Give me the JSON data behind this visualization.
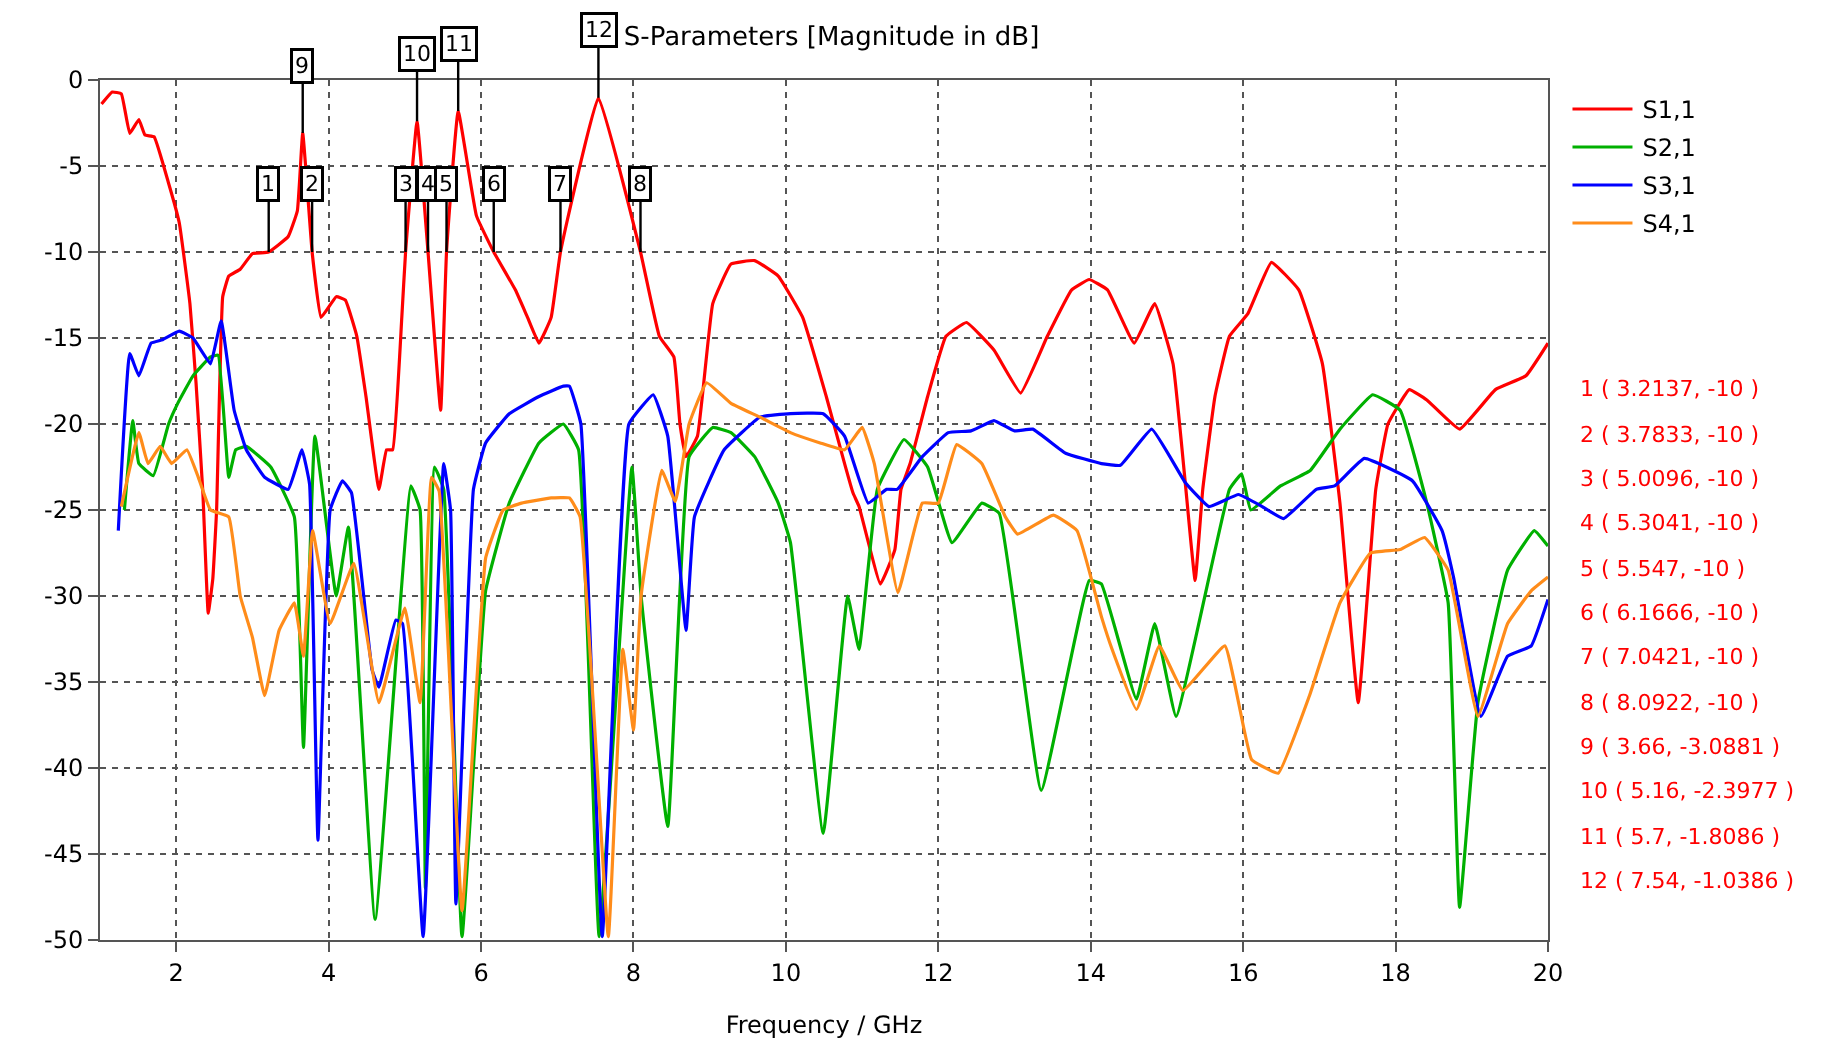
{
  "chart_data": {
    "type": "line",
    "title": "S-Parameters [Magnitude in dB]",
    "xlabel": "Frequency / GHz",
    "xlim": [
      1,
      20
    ],
    "xticks": [
      2,
      4,
      6,
      8,
      10,
      12,
      14,
      16,
      18,
      20
    ],
    "ylim": [
      -50,
      0
    ],
    "yticks": [
      -50,
      -45,
      -40,
      -35,
      -30,
      -25,
      -20,
      -15,
      -10,
      -5,
      0
    ],
    "grid": true,
    "legend": "top right",
    "line_style": "solid",
    "marker": "none",
    "series": [
      {
        "name": "S1,1",
        "color": "#ff0000",
        "x": [
          1.02,
          1.16,
          1.28,
          1.39,
          1.51,
          1.59,
          1.71,
          1.9,
          2.04,
          2.18,
          2.26,
          2.35,
          2.42,
          2.48,
          2.53,
          2.61,
          2.69,
          2.84,
          3.0,
          3.2137,
          3.47,
          3.59,
          3.66,
          3.7833,
          3.9,
          4.1,
          4.22,
          4.37,
          4.49,
          4.66,
          4.76,
          4.84,
          4.96,
          5.0096,
          5.16,
          5.3041,
          5.47,
          5.547,
          5.7,
          5.94,
          6.1666,
          6.45,
          6.61,
          6.76,
          6.92,
          7.0421,
          7.54,
          8.0922,
          8.34,
          8.53,
          8.61,
          8.69,
          8.84,
          9.04,
          9.28,
          9.59,
          9.9,
          10.22,
          10.53,
          10.77,
          10.88,
          10.96,
          11.24,
          11.43,
          11.51,
          11.63,
          11.86,
          12.1,
          12.37,
          12.73,
          13.08,
          13.43,
          13.75,
          13.98,
          14.22,
          14.57,
          14.84,
          15.08,
          15.24,
          15.37,
          15.47,
          15.63,
          15.82,
          16.06,
          16.37,
          16.73,
          17.04,
          17.27,
          17.51,
          17.74,
          17.9,
          18.18,
          18.41,
          18.84,
          19.31,
          19.71,
          20.0
        ],
        "values": [
          -1.4,
          -0.7,
          -0.8,
          -3.1,
          -2.3,
          -3.2,
          -3.3,
          -6.0,
          -8.3,
          -13.0,
          -17.6,
          -24.0,
          -31.0,
          -29.0,
          -25.0,
          -12.6,
          -11.4,
          -11.0,
          -10.1,
          -10,
          -9.1,
          -7.6,
          -3.0881,
          -10,
          -13.8,
          -12.6,
          -12.8,
          -14.9,
          -18.4,
          -23.8,
          -21.5,
          -21.5,
          -13.8,
          -10,
          -2.3977,
          -10,
          -19.2,
          -10,
          -1.8086,
          -7.9,
          -10,
          -12.2,
          -13.8,
          -15.3,
          -13.8,
          -10,
          -1.0386,
          -10,
          -14.9,
          -16.1,
          -20.0,
          -21.9,
          -20.7,
          -13.0,
          -10.7,
          -10.5,
          -11.4,
          -13.8,
          -18.4,
          -22.3,
          -24.0,
          -24.8,
          -29.3,
          -27.3,
          -23.8,
          -22.3,
          -18.4,
          -14.9,
          -14.1,
          -15.7,
          -18.2,
          -14.9,
          -12.2,
          -11.6,
          -12.2,
          -15.3,
          -13.0,
          -16.5,
          -23.4,
          -29.1,
          -23.8,
          -18.4,
          -14.9,
          -13.6,
          -10.6,
          -12.2,
          -16.5,
          -24.6,
          -36.2,
          -23.8,
          -20.0,
          -18.0,
          -18.6,
          -20.3,
          -18.0,
          -17.2,
          -15.3
        ]
      },
      {
        "name": "S2,1",
        "color": "#00b000",
        "x": [
          1.32,
          1.43,
          1.51,
          1.7,
          1.9,
          2.02,
          2.22,
          2.45,
          2.55,
          2.69,
          2.78,
          2.92,
          3.24,
          3.55,
          3.67,
          3.82,
          4.1,
          4.26,
          4.61,
          5.08,
          5.2,
          5.27,
          5.39,
          5.51,
          5.75,
          6.06,
          6.37,
          6.76,
          7.08,
          7.28,
          7.55,
          7.98,
          8.1,
          8.45,
          8.73,
          9.04,
          9.28,
          9.59,
          9.9,
          10.06,
          10.49,
          10.81,
          10.96,
          11.2,
          11.55,
          11.86,
          12.18,
          12.57,
          12.8,
          13.35,
          13.98,
          14.14,
          14.6,
          14.84,
          15.12,
          15.82,
          15.98,
          16.1,
          16.49,
          16.88,
          17.27,
          17.7,
          18.06,
          18.41,
          18.69,
          18.84,
          19.08,
          19.47,
          19.82,
          20.0
        ],
        "values": [
          -25.0,
          -19.8,
          -22.3,
          -23.0,
          -20.0,
          -18.8,
          -17.2,
          -16.1,
          -16.0,
          -23.1,
          -21.5,
          -21.3,
          -22.5,
          -25.4,
          -38.8,
          -20.7,
          -30.0,
          -26.0,
          -48.8,
          -23.6,
          -25.0,
          -47.0,
          -22.5,
          -23.8,
          -49.8,
          -29.7,
          -24.6,
          -21.1,
          -20.0,
          -21.5,
          -49.8,
          -22.5,
          -30.0,
          -43.4,
          -21.9,
          -20.2,
          -20.5,
          -21.9,
          -24.6,
          -26.9,
          -43.8,
          -30.0,
          -33.1,
          -23.8,
          -20.9,
          -22.5,
          -26.9,
          -24.6,
          -25.2,
          -41.3,
          -29.1,
          -29.3,
          -36.0,
          -31.6,
          -37.0,
          -23.8,
          -22.9,
          -25.0,
          -23.6,
          -22.7,
          -20.3,
          -18.3,
          -19.2,
          -24.6,
          -30.4,
          -48.1,
          -36.2,
          -28.5,
          -26.2,
          -27.1
        ]
      },
      {
        "name": "S3,1",
        "color": "#0000ff",
        "x": [
          1.24,
          1.39,
          1.51,
          1.67,
          1.82,
          2.04,
          2.22,
          2.45,
          2.59,
          2.76,
          2.92,
          3.16,
          3.47,
          3.65,
          3.75,
          3.86,
          4.02,
          4.18,
          4.3,
          4.57,
          4.66,
          4.88,
          4.97,
          5.24,
          5.51,
          5.6,
          5.67,
          5.9,
          6.06,
          6.37,
          6.76,
          7.08,
          7.16,
          7.31,
          7.59,
          7.94,
          8.26,
          8.45,
          8.69,
          8.8,
          9.19,
          9.66,
          10.06,
          10.49,
          10.77,
          11.08,
          11.32,
          11.46,
          11.79,
          12.13,
          12.43,
          12.73,
          13.0,
          13.24,
          13.67,
          14.14,
          14.39,
          14.8,
          15.24,
          15.55,
          15.94,
          16.25,
          16.53,
          16.96,
          17.2,
          17.59,
          18.22,
          18.61,
          18.76,
          19.12,
          19.47,
          19.78,
          20.0
        ],
        "values": [
          -26.2,
          -15.9,
          -17.2,
          -15.3,
          -15.1,
          -14.6,
          -15.0,
          -16.5,
          -14.0,
          -19.2,
          -21.5,
          -23.1,
          -23.8,
          -21.5,
          -23.5,
          -44.2,
          -25.0,
          -23.3,
          -24.0,
          -34.3,
          -35.3,
          -31.4,
          -31.6,
          -49.8,
          -22.3,
          -25.0,
          -47.9,
          -23.8,
          -21.1,
          -19.4,
          -18.4,
          -17.8,
          -17.8,
          -20.0,
          -49.8,
          -20.0,
          -18.3,
          -20.7,
          -32.0,
          -25.4,
          -21.5,
          -19.6,
          -19.4,
          -19.4,
          -20.7,
          -24.6,
          -23.8,
          -23.8,
          -21.9,
          -20.5,
          -20.4,
          -19.8,
          -20.4,
          -20.3,
          -21.7,
          -22.3,
          -22.4,
          -20.3,
          -23.4,
          -24.8,
          -24.1,
          -24.8,
          -25.5,
          -23.8,
          -23.6,
          -22.0,
          -23.3,
          -26.2,
          -28.9,
          -37.0,
          -33.5,
          -32.9,
          -30.2
        ]
      },
      {
        "name": "S4,1",
        "color": "#ff8c1a",
        "x": [
          1.28,
          1.51,
          1.63,
          1.79,
          1.94,
          2.14,
          2.29,
          2.45,
          2.69,
          2.84,
          3.0,
          3.16,
          3.35,
          3.55,
          3.67,
          3.79,
          4.02,
          4.33,
          4.66,
          5.0,
          5.2,
          5.35,
          5.45,
          5.75,
          6.06,
          6.29,
          6.53,
          6.92,
          7.16,
          7.3,
          7.67,
          7.86,
          8.0,
          8.1,
          8.37,
          8.55,
          8.73,
          8.96,
          9.28,
          9.66,
          10.06,
          10.45,
          10.77,
          11.0,
          11.16,
          11.47,
          11.79,
          12.0,
          12.24,
          12.57,
          12.88,
          13.04,
          13.51,
          13.82,
          14.14,
          14.28,
          14.6,
          14.9,
          15.21,
          15.76,
          16.11,
          16.46,
          16.87,
          17.27,
          17.67,
          18.06,
          18.38,
          18.69,
          19.08,
          19.47,
          19.78,
          20.0
        ],
        "values": [
          -24.8,
          -20.5,
          -22.3,
          -21.3,
          -22.3,
          -21.5,
          -23.1,
          -25.0,
          -25.4,
          -30.0,
          -32.4,
          -35.8,
          -32.0,
          -30.4,
          -33.5,
          -26.2,
          -31.6,
          -28.1,
          -36.2,
          -30.7,
          -36.2,
          -23.1,
          -23.9,
          -48.3,
          -27.8,
          -25.0,
          -24.6,
          -24.3,
          -24.3,
          -25.4,
          -49.8,
          -33.1,
          -37.8,
          -30.0,
          -22.7,
          -24.5,
          -20.0,
          -17.6,
          -18.8,
          -19.6,
          -20.5,
          -21.1,
          -21.5,
          -20.2,
          -22.3,
          -29.8,
          -24.6,
          -24.6,
          -21.2,
          -22.3,
          -25.4,
          -26.4,
          -25.3,
          -26.2,
          -31.2,
          -33.1,
          -36.6,
          -32.9,
          -35.5,
          -32.9,
          -39.5,
          -40.3,
          -35.8,
          -30.4,
          -27.5,
          -27.3,
          -26.6,
          -28.5,
          -37.0,
          -31.6,
          -29.7,
          -28.9
        ]
      }
    ],
    "annotations": [
      {
        "text": "1",
        "x": 3.2137,
        "y": -10
      },
      {
        "text": "2",
        "x": 3.7833,
        "y": -10
      },
      {
        "text": "3",
        "x": 5.0096,
        "y": -10
      },
      {
        "text": "4",
        "x": 5.3041,
        "y": -10
      },
      {
        "text": "5",
        "x": 5.547,
        "y": -10
      },
      {
        "text": "6",
        "x": 6.1666,
        "y": -10
      },
      {
        "text": "7",
        "x": 7.0421,
        "y": -10
      },
      {
        "text": "8",
        "x": 8.0922,
        "y": -10
      },
      {
        "text": "9",
        "x": 3.66,
        "y": -3.0881
      },
      {
        "text": "10",
        "x": 5.16,
        "y": -2.3977
      },
      {
        "text": "11",
        "x": 5.7,
        "y": -1.8086
      },
      {
        "text": "12",
        "x": 7.54,
        "y": -1.0386
      },
      "1 ( 3.2137, -10 )",
      "2 ( 3.7833, -10 )",
      "3 ( 5.0096, -10 )",
      "4 ( 5.3041, -10 )",
      "5 ( 5.547, -10 )",
      "6 ( 6.1666, -10 )",
      "7 ( 7.0421, -10 )",
      "8 ( 8.0922, -10 )",
      "9 ( 3.66, -3.0881 )",
      "10 ( 5.16, -2.3977 )",
      "11 ( 5.7, -1.8086 )",
      "12 ( 7.54, -1.0386 )"
    ]
  }
}
